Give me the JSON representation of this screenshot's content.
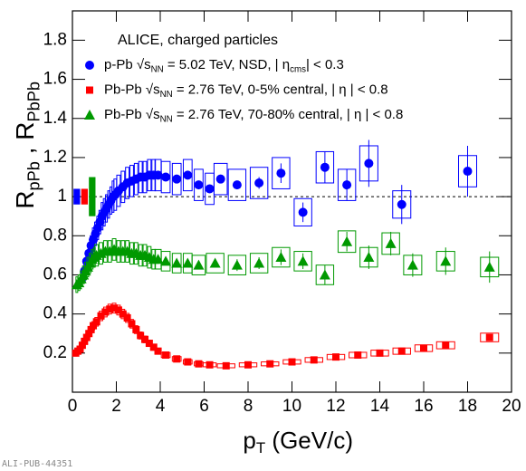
{
  "chart_data": {
    "type": "scatter",
    "title": "ALICE, charged particles",
    "x_label": [
      {
        "text": "p"
      },
      {
        "text": "T",
        "sub": true
      },
      {
        "text": " (GeV/c)"
      }
    ],
    "y_label": [
      {
        "text": "R"
      },
      {
        "text": "pPb",
        "sub": true
      },
      {
        "text": " , R"
      },
      {
        "text": "PbPb",
        "sub": true
      }
    ],
    "watermark": "ALI-PUB-44351",
    "xlim": [
      0,
      20
    ],
    "ylim": [
      0,
      1.95
    ],
    "xticks": [
      0,
      2,
      4,
      6,
      8,
      10,
      12,
      14,
      16,
      18,
      20
    ],
    "yticks": [
      0.2,
      0.4,
      0.6,
      0.8,
      1,
      1.2,
      1.4,
      1.6,
      1.8
    ],
    "reference_line": 1,
    "series": [
      {
        "name": "p-Pb",
        "color": "#0000ff",
        "marker": "circle",
        "norm_uncertainty": 0.04,
        "label": [
          {
            "text": "p-Pb  √s"
          },
          {
            "text": "NN",
            "sub": true
          },
          {
            "text": " = 5.02 TeV,  NSD, | η"
          },
          {
            "text": "cms",
            "sub": true
          },
          {
            "text": "| < 0.3"
          }
        ],
        "x": [
          0.55,
          0.65,
          0.75,
          0.85,
          0.95,
          1.05,
          1.15,
          1.25,
          1.35,
          1.45,
          1.55,
          1.65,
          1.75,
          1.85,
          1.95,
          2.1,
          2.3,
          2.5,
          2.7,
          2.9,
          3.1,
          3.3,
          3.5,
          3.7,
          3.9,
          4.25,
          4.75,
          5.25,
          5.75,
          6.25,
          6.75,
          7.5,
          8.5,
          9.5,
          10.5,
          11.5,
          12.5,
          13.5,
          15,
          18
        ],
        "values": [
          0.62,
          0.67,
          0.71,
          0.75,
          0.78,
          0.81,
          0.84,
          0.87,
          0.9,
          0.92,
          0.94,
          0.96,
          0.98,
          1,
          1.01,
          1.03,
          1.05,
          1.07,
          1.08,
          1.09,
          1.1,
          1.1,
          1.11,
          1.11,
          1.11,
          1.1,
          1.09,
          1.11,
          1.06,
          1.04,
          1.09,
          1.06,
          1.07,
          1.12,
          0.92,
          1.15,
          1.06,
          1.17,
          0.96,
          1.13
        ],
        "errors": [
          0.005,
          0.005,
          0.005,
          0.005,
          0.005,
          0.005,
          0.005,
          0.005,
          0.005,
          0.005,
          0.005,
          0.005,
          0.005,
          0.005,
          0.005,
          0.005,
          0.005,
          0.005,
          0.005,
          0.005,
          0.005,
          0.005,
          0.01,
          0.01,
          0.01,
          0.01,
          0.01,
          0.01,
          0.02,
          0.02,
          0.02,
          0.02,
          0.03,
          0.05,
          0.05,
          0.08,
          0.08,
          0.12,
          0.1,
          0.13
        ],
        "sys": [
          0.05,
          0.05,
          0.05,
          0.05,
          0.06,
          0.06,
          0.06,
          0.06,
          0.07,
          0.07,
          0.07,
          0.07,
          0.07,
          0.08,
          0.08,
          0.08,
          0.08,
          0.08,
          0.08,
          0.08,
          0.08,
          0.08,
          0.08,
          0.08,
          0.08,
          0.08,
          0.08,
          0.08,
          0.08,
          0.08,
          0.08,
          0.08,
          0.08,
          0.08,
          0.07,
          0.08,
          0.08,
          0.09,
          0.07,
          0.08
        ]
      },
      {
        "name": "Pb-Pb 0-5%",
        "color": "#ff0000",
        "marker": "square",
        "norm_uncertainty": 0.04,
        "label": [
          {
            "text": "Pb-Pb  √s"
          },
          {
            "text": "NN",
            "sub": true
          },
          {
            "text": " = 2.76 TeV,  0-5% central, | η | < 0.8"
          }
        ],
        "x": [
          0.15,
          0.25,
          0.35,
          0.45,
          0.55,
          0.65,
          0.75,
          0.85,
          0.95,
          1.1,
          1.3,
          1.5,
          1.7,
          1.9,
          2.1,
          2.3,
          2.5,
          2.7,
          2.9,
          3.1,
          3.3,
          3.5,
          3.7,
          3.9,
          4.25,
          4.75,
          5.25,
          5.75,
          6.25,
          7,
          8,
          9,
          10,
          11,
          12,
          13,
          14,
          15,
          16,
          17,
          19
        ],
        "values": [
          0.2,
          0.21,
          0.22,
          0.24,
          0.26,
          0.28,
          0.3,
          0.32,
          0.34,
          0.36,
          0.39,
          0.41,
          0.425,
          0.43,
          0.42,
          0.4,
          0.38,
          0.35,
          0.32,
          0.29,
          0.27,
          0.25,
          0.23,
          0.21,
          0.19,
          0.17,
          0.155,
          0.145,
          0.14,
          0.135,
          0.14,
          0.145,
          0.155,
          0.165,
          0.18,
          0.19,
          0.2,
          0.21,
          0.225,
          0.24,
          0.28
        ],
        "errors": [
          0.002,
          0.002,
          0.002,
          0.002,
          0.002,
          0.002,
          0.002,
          0.002,
          0.002,
          0.002,
          0.002,
          0.002,
          0.002,
          0.002,
          0.002,
          0.002,
          0.002,
          0.002,
          0.002,
          0.002,
          0.002,
          0.002,
          0.002,
          0.002,
          0.002,
          0.002,
          0.002,
          0.002,
          0.002,
          0.002,
          0.003,
          0.003,
          0.004,
          0.004,
          0.005,
          0.005,
          0.006,
          0.007,
          0.008,
          0.01,
          0.012
        ],
        "sys": [
          0.015,
          0.015,
          0.015,
          0.016,
          0.017,
          0.018,
          0.019,
          0.02,
          0.021,
          0.022,
          0.024,
          0.025,
          0.025,
          0.025,
          0.025,
          0.024,
          0.023,
          0.022,
          0.02,
          0.018,
          0.017,
          0.016,
          0.015,
          0.014,
          0.013,
          0.012,
          0.011,
          0.01,
          0.01,
          0.01,
          0.01,
          0.01,
          0.011,
          0.012,
          0.013,
          0.014,
          0.015,
          0.016,
          0.017,
          0.018,
          0.022
        ]
      },
      {
        "name": "Pb-Pb 70-80%",
        "color": "#009900",
        "marker": "triangle",
        "norm_uncertainty": 0.1,
        "label": [
          {
            "text": "Pb-Pb  √s"
          },
          {
            "text": "NN",
            "sub": true
          },
          {
            "text": " = 2.76 TeV,  70-80% central, | η | < 0.8"
          }
        ],
        "x": [
          0.2,
          0.3,
          0.4,
          0.5,
          0.6,
          0.7,
          0.8,
          0.9,
          1,
          1.1,
          1.3,
          1.5,
          1.7,
          1.9,
          2.1,
          2.3,
          2.5,
          2.7,
          2.9,
          3.1,
          3.3,
          3.5,
          3.7,
          3.9,
          4.25,
          4.75,
          5.25,
          5.75,
          6.5,
          7.5,
          8.5,
          9.5,
          10.5,
          11.5,
          12.5,
          13.5,
          14.5,
          15.5,
          17,
          19
        ],
        "values": [
          0.55,
          0.56,
          0.58,
          0.6,
          0.62,
          0.64,
          0.66,
          0.68,
          0.69,
          0.7,
          0.71,
          0.72,
          0.72,
          0.73,
          0.72,
          0.72,
          0.72,
          0.71,
          0.71,
          0.7,
          0.7,
          0.69,
          0.68,
          0.68,
          0.67,
          0.66,
          0.66,
          0.65,
          0.66,
          0.65,
          0.66,
          0.69,
          0.67,
          0.6,
          0.77,
          0.69,
          0.76,
          0.65,
          0.67,
          0.64
        ],
        "errors": [
          0.005,
          0.005,
          0.005,
          0.005,
          0.005,
          0.005,
          0.005,
          0.005,
          0.005,
          0.005,
          0.005,
          0.005,
          0.005,
          0.005,
          0.005,
          0.005,
          0.005,
          0.005,
          0.005,
          0.005,
          0.01,
          0.01,
          0.01,
          0.01,
          0.01,
          0.015,
          0.015,
          0.02,
          0.02,
          0.03,
          0.03,
          0.04,
          0.04,
          0.05,
          0.05,
          0.06,
          0.06,
          0.06,
          0.07,
          0.08
        ],
        "sys": [
          0.04,
          0.04,
          0.04,
          0.045,
          0.045,
          0.05,
          0.05,
          0.05,
          0.05,
          0.055,
          0.055,
          0.055,
          0.055,
          0.055,
          0.055,
          0.055,
          0.055,
          0.055,
          0.055,
          0.055,
          0.055,
          0.055,
          0.05,
          0.05,
          0.05,
          0.05,
          0.05,
          0.05,
          0.05,
          0.05,
          0.05,
          0.05,
          0.05,
          0.05,
          0.055,
          0.05,
          0.055,
          0.05,
          0.05,
          0.05
        ]
      }
    ]
  }
}
